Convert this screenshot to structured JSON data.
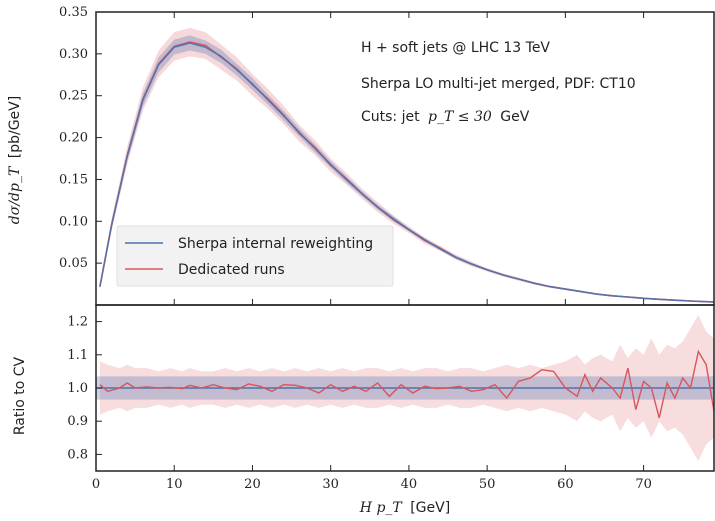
{
  "colors": {
    "reweight": "#4c72b0",
    "dedicated": "#d9545c"
  },
  "chart_data": [
    {
      "type": "line",
      "title": "",
      "xlabel": "",
      "ylabel_text": "[pb/GeV]",
      "ylabel_math": "dσ/dp_T",
      "xlim": [
        0,
        79
      ],
      "ylim": [
        0,
        0.35
      ],
      "yticks": [
        "0.05",
        "0.10",
        "0.15",
        "0.20",
        "0.25",
        "0.30",
        "0.35"
      ],
      "x": [
        0.5,
        2,
        4,
        6,
        8,
        10,
        12,
        14,
        16,
        18,
        20,
        22,
        24,
        26,
        28,
        30,
        32,
        34,
        36,
        38,
        40,
        42,
        44,
        46,
        48,
        50,
        52,
        54,
        56,
        58,
        60,
        62,
        64,
        66,
        68,
        70,
        72,
        74,
        76,
        78,
        79
      ],
      "series": [
        {
          "name": "Sherpa internal reweighting",
          "values": [
            0.022,
            0.095,
            0.178,
            0.245,
            0.287,
            0.308,
            0.313,
            0.308,
            0.297,
            0.281,
            0.264,
            0.245,
            0.226,
            0.206,
            0.187,
            0.168,
            0.15,
            0.133,
            0.117,
            0.103,
            0.09,
            0.078,
            0.067,
            0.057,
            0.049,
            0.042,
            0.036,
            0.031,
            0.026,
            0.022,
            0.019,
            0.016,
            0.013,
            0.011,
            0.0095,
            0.008,
            0.0068,
            0.0057,
            0.0048,
            0.004,
            0.0037
          ],
          "band_halfwidth": [
            0.002,
            0.004,
            0.006,
            0.008,
            0.009,
            0.009,
            0.009,
            0.008,
            0.008,
            0.007,
            0.007,
            0.006,
            0.006,
            0.005,
            0.005,
            0.004,
            0.004,
            0.003,
            0.003,
            0.003,
            0.002,
            0.002,
            0.002,
            0.002,
            0.0015,
            0.0012,
            0.001,
            0.001,
            0.0008,
            0.0007,
            0.0006,
            0.0005,
            0.0004,
            0.0004,
            0.0003,
            0.0003,
            0.0003,
            0.0002,
            0.0002,
            0.0002,
            0.0002
          ]
        },
        {
          "name": "Dedicated runs",
          "values": [
            0.022,
            0.096,
            0.179,
            0.246,
            0.288,
            0.309,
            0.314,
            0.31,
            0.296,
            0.282,
            0.263,
            0.246,
            0.227,
            0.205,
            0.188,
            0.167,
            0.151,
            0.133,
            0.117,
            0.102,
            0.09,
            0.077,
            0.068,
            0.057,
            0.049,
            0.042,
            0.036,
            0.031,
            0.026,
            0.022,
            0.019,
            0.016,
            0.013,
            0.011,
            0.0095,
            0.008,
            0.0068,
            0.0057,
            0.0048,
            0.004,
            0.0037
          ],
          "band_halfwidth": [
            0.003,
            0.007,
            0.011,
            0.014,
            0.016,
            0.017,
            0.017,
            0.016,
            0.015,
            0.014,
            0.013,
            0.012,
            0.011,
            0.01,
            0.009,
            0.008,
            0.007,
            0.006,
            0.006,
            0.005,
            0.004,
            0.004,
            0.003,
            0.003,
            0.003,
            0.002,
            0.002,
            0.002,
            0.0015,
            0.0013,
            0.0012,
            0.001,
            0.0009,
            0.0008,
            0.0007,
            0.0006,
            0.0006,
            0.0005,
            0.0005,
            0.0004,
            0.0004
          ]
        }
      ],
      "annotations": [
        "H + soft jets @ LHC 13 TeV",
        "Sherpa LO multi-jet merged, PDF: CT10",
        "Cuts: jet"
      ],
      "cut_math": "p_T ≤ 30",
      "cut_unit": "GeV",
      "legend": "lower-left"
    },
    {
      "type": "line",
      "ylabel": "Ratio to CV",
      "xlabel_math": "H p_T",
      "xlabel_unit": "[GeV]",
      "xlim": [
        0,
        79
      ],
      "ylim": [
        0.75,
        1.25
      ],
      "xticks": [
        0,
        10,
        20,
        30,
        40,
        50,
        60,
        70
      ],
      "xtick_labels": [
        "0",
        "10",
        "20",
        "30",
        "40",
        "50",
        "60",
        "70"
      ],
      "yticks": [
        "0.8",
        "0.9",
        "1.0",
        "1.1",
        "1.2"
      ],
      "reference_value": 1.0,
      "blue_band": [
        0.965,
        1.035
      ],
      "x": [
        0.5,
        1.5,
        3,
        4,
        5,
        6.5,
        8,
        9.5,
        11,
        12,
        13.5,
        15,
        16.5,
        18,
        19.5,
        21,
        22.5,
        24,
        25.5,
        27,
        28.5,
        30,
        31.5,
        33,
        34.5,
        36,
        37.5,
        39,
        40.5,
        42,
        43.5,
        45,
        46.5,
        48,
        49.5,
        51,
        52.5,
        54,
        55.5,
        57,
        58.5,
        60,
        61.5,
        62.5,
        63.5,
        64.5,
        66,
        67,
        68,
        69,
        70,
        71,
        72,
        73,
        74,
        75,
        76,
        77,
        78,
        79
      ],
      "ratio": [
        1.01,
        0.99,
        1.0,
        1.015,
        1.0,
        1.003,
        1.0,
        1.002,
        0.998,
        1.008,
        1.0,
        1.01,
        1.0,
        0.995,
        1.012,
        1.005,
        0.99,
        1.01,
        1.008,
        1.0,
        0.985,
        1.01,
        0.99,
        1.005,
        0.99,
        1.015,
        0.975,
        1.01,
        0.985,
        1.005,
        0.998,
        1.0,
        1.005,
        0.99,
        0.995,
        1.01,
        0.97,
        1.02,
        1.03,
        1.055,
        1.05,
        1.0,
        0.975,
        1.04,
        0.99,
        1.03,
        1.0,
        0.97,
        1.06,
        0.935,
        1.02,
        1.0,
        0.91,
        1.015,
        0.97,
        1.03,
        1.0,
        1.11,
        1.07,
        0.93
      ],
      "red_band_halfwidth": [
        0.08,
        0.07,
        0.06,
        0.07,
        0.06,
        0.06,
        0.05,
        0.06,
        0.05,
        0.06,
        0.05,
        0.05,
        0.06,
        0.05,
        0.06,
        0.05,
        0.06,
        0.05,
        0.06,
        0.05,
        0.06,
        0.05,
        0.06,
        0.05,
        0.06,
        0.06,
        0.05,
        0.06,
        0.05,
        0.06,
        0.06,
        0.05,
        0.06,
        0.06,
        0.05,
        0.06,
        0.07,
        0.06,
        0.07,
        0.06,
        0.07,
        0.08,
        0.1,
        0.07,
        0.09,
        0.1,
        0.08,
        0.13,
        0.09,
        0.12,
        0.1,
        0.15,
        0.1,
        0.13,
        0.12,
        0.14,
        0.18,
        0.22,
        0.17,
        0.15
      ]
    }
  ]
}
